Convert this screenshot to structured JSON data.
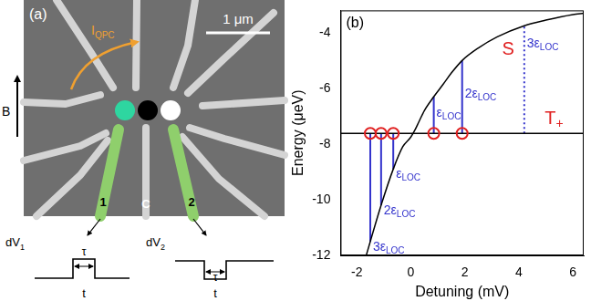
{
  "panel_a": {
    "panel_label": "(a)",
    "scale_bar": "1 μm",
    "field": "B",
    "current": {
      "base": "I",
      "sub": "QPC"
    },
    "gates": [
      "1",
      "C",
      "2"
    ],
    "pulses": [
      {
        "label": {
          "base": "dV",
          "sub": "1"
        },
        "width": "τ",
        "time": "t"
      },
      {
        "label": {
          "base": "dV",
          "sub": "2"
        },
        "width": "τ",
        "time": "t"
      }
    ]
  },
  "chart_data": {
    "type": "line",
    "panel_label": "(b)",
    "x_label": "Detuning (mV)",
    "y_label": "Energy (μeV)",
    "xlim": [
      -2.6,
      6.4
    ],
    "xticks": [
      -2,
      0,
      2,
      4,
      6
    ],
    "ylim": [
      -12,
      -3.2
    ],
    "yticks": [
      -12,
      -10,
      -8,
      -6,
      -4
    ],
    "grid": false,
    "series": [
      {
        "color": "#000000",
        "x": [
          -1.65,
          -1.5,
          -1.1,
          -0.65,
          -0.3,
          0,
          0.15,
          0.3,
          0.5,
          0.85,
          1.2,
          1.5,
          1.9,
          2.5,
          3.2,
          4.2,
          5.0,
          6.0,
          6.4
        ],
        "values": [
          -12,
          -11.5,
          -10.2,
          -8.9,
          -8.1,
          -7.75,
          -7.5,
          -7.2,
          -6.8,
          -6.3,
          -5.85,
          -5.45,
          -5.0,
          -4.55,
          -4.15,
          -3.75,
          -3.55,
          -3.35,
          -3.3
        ]
      },
      {
        "color": "#000000",
        "x": [
          -2.6,
          6.4
        ],
        "values": [
          -7.62,
          -7.62
        ]
      },
      {
        "type": "scatter",
        "marker": "circle",
        "color": "#e02020",
        "x": [
          -1.5,
          -1.1,
          -0.65,
          0.85,
          1.9
        ],
        "values": [
          -7.62,
          -7.62,
          -7.62,
          -7.62,
          -7.62
        ]
      }
    ],
    "transitions": [
      {
        "x": -1.5,
        "from": -7.62,
        "to": -11.5,
        "label": {
          "base": "3ε",
          "sub": "LOC"
        },
        "label_x": -1.4,
        "label_y": -11.7,
        "color": "#3333cc",
        "line_style": "solid"
      },
      {
        "x": -1.1,
        "from": -7.62,
        "to": -10.2,
        "label": {
          "base": "2ε",
          "sub": "LOC"
        },
        "label_x": -1.0,
        "label_y": -10.4,
        "color": "#3333cc",
        "line_style": "solid"
      },
      {
        "x": -0.65,
        "from": -7.62,
        "to": -8.9,
        "label": {
          "base": "ε",
          "sub": "LOC"
        },
        "label_x": -0.55,
        "label_y": -9.1,
        "color": "#3333cc",
        "line_style": "solid"
      },
      {
        "x": 0.85,
        "from": -7.62,
        "to": -6.3,
        "label": {
          "base": "ε",
          "sub": "LOC"
        },
        "label_x": 0.95,
        "label_y": -6.9,
        "color": "#3333cc",
        "line_style": "solid"
      },
      {
        "x": 1.9,
        "from": -7.62,
        "to": -5.0,
        "label": {
          "base": "2ε",
          "sub": "LOC"
        },
        "label_x": 2.0,
        "label_y": -6.2,
        "color": "#3333cc",
        "line_style": "solid"
      },
      {
        "x": 4.2,
        "from": -7.62,
        "to": -3.75,
        "label": {
          "base": "3ε",
          "sub": "LOC"
        },
        "label_x": 4.3,
        "label_y": -4.4,
        "color": "#3333cc",
        "line_style": "dotted"
      }
    ],
    "annotations": [
      {
        "text": {
          "base": "S"
        },
        "x": 3.6,
        "y": -4.6,
        "color": "#e02020"
      },
      {
        "text": {
          "base": "T",
          "sub": "+"
        },
        "x": 5.3,
        "y": -7.1,
        "color": "#e02020"
      }
    ]
  }
}
